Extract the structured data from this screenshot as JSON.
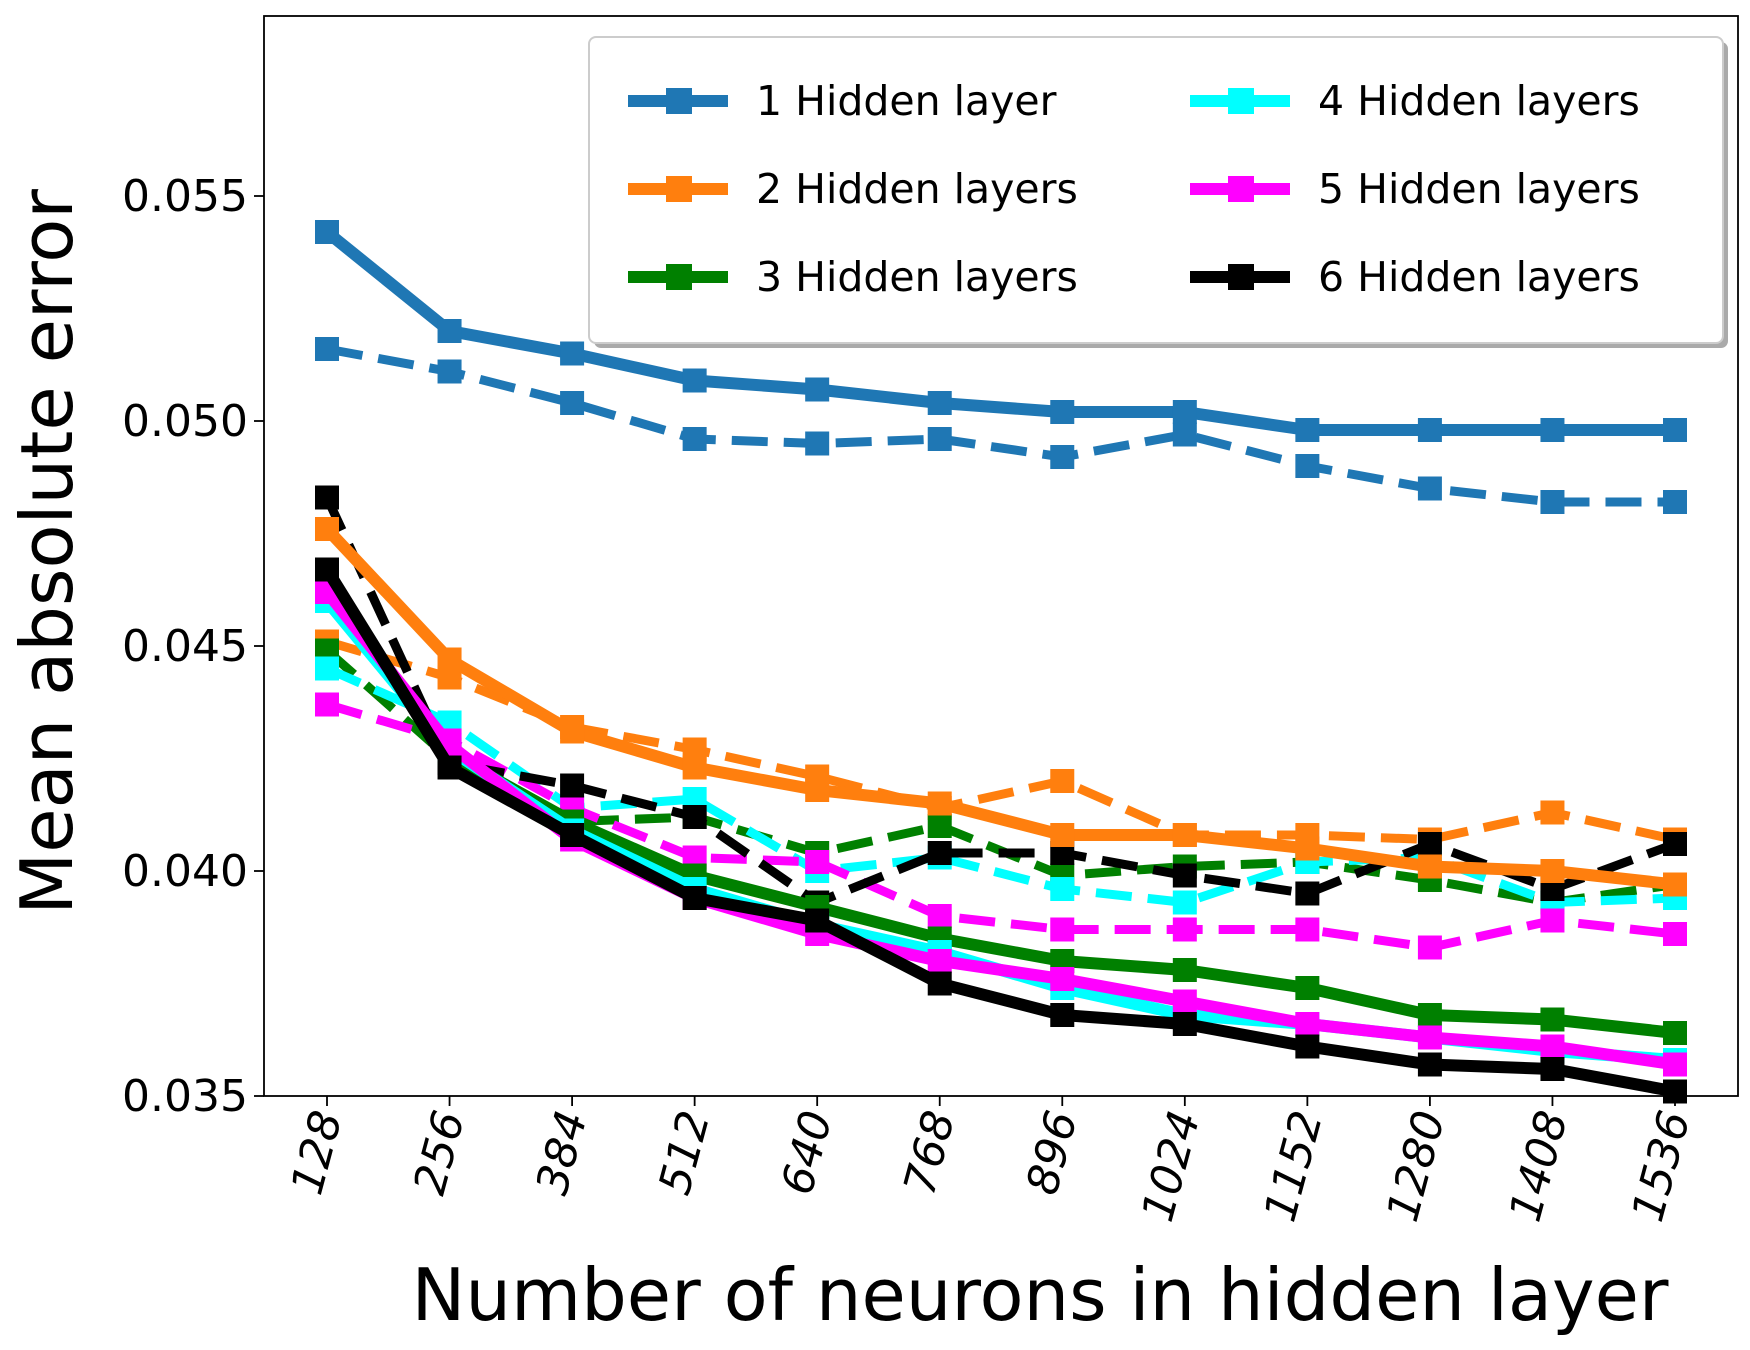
{
  "chart_data": {
    "type": "line",
    "xlabel": "Number of neurons in hidden layer",
    "ylabel": "Mean absolute error",
    "x": [
      128,
      256,
      384,
      512,
      640,
      768,
      896,
      1024,
      1152,
      1280,
      1408,
      1536
    ],
    "xtick_labels": [
      "128",
      "256",
      "384",
      "512",
      "640",
      "768",
      "896",
      "1024",
      "1152",
      "1280",
      "1408",
      "1536"
    ],
    "ylim": [
      0.035,
      0.059
    ],
    "yticks": [
      0.035,
      0.04,
      0.045,
      0.05,
      0.055
    ],
    "ytick_labels": [
      "0.035",
      "0.040",
      "0.045",
      "0.050",
      "0.055"
    ],
    "grid": false,
    "legend_position": "top-right",
    "series": [
      {
        "name": "1 Hidden layer",
        "color": "#1f77b4",
        "style": "solid",
        "values": [
          0.0542,
          0.052,
          0.0515,
          0.0509,
          0.0507,
          0.0504,
          0.0502,
          0.0502,
          0.0498,
          0.0498,
          0.0498,
          0.0498
        ]
      },
      {
        "name": "2 Hidden layers",
        "color": "#ff7f0e",
        "style": "solid",
        "values": [
          0.0476,
          0.0447,
          0.0431,
          0.0423,
          0.0418,
          0.0415,
          0.0408,
          0.0408,
          0.0405,
          0.0401,
          0.04,
          0.0397
        ]
      },
      {
        "name": "3 Hidden layers",
        "color": "#008000",
        "style": "solid",
        "values": [
          0.0464,
          0.0426,
          0.0411,
          0.0399,
          0.0392,
          0.0385,
          0.038,
          0.0378,
          0.0374,
          0.0368,
          0.0367,
          0.0364
        ]
      },
      {
        "name": "4 Hidden layers",
        "color": "#00ffff",
        "style": "solid",
        "values": [
          0.046,
          0.0427,
          0.0409,
          0.0396,
          0.0388,
          0.0382,
          0.0374,
          0.0368,
          0.0366,
          0.0363,
          0.036,
          0.0358
        ]
      },
      {
        "name": "5 Hidden layers",
        "color": "#ff00ff",
        "style": "solid",
        "values": [
          0.0462,
          0.0428,
          0.0407,
          0.0394,
          0.0386,
          0.038,
          0.0376,
          0.0371,
          0.0366,
          0.0363,
          0.0361,
          0.0357
        ]
      },
      {
        "name": "6 Hidden layers",
        "color": "#000000",
        "style": "solid",
        "values": [
          0.0467,
          0.0423,
          0.0408,
          0.0394,
          0.0389,
          0.0375,
          0.0368,
          0.0366,
          0.0361,
          0.0357,
          0.0356,
          0.0351
        ]
      },
      {
        "name": "1 Hidden layer (dashed)",
        "color": "#1f77b4",
        "style": "dashed",
        "values": [
          0.0516,
          0.0511,
          0.0504,
          0.0496,
          0.0495,
          0.0496,
          0.0492,
          0.0497,
          0.049,
          0.0485,
          0.0482,
          0.0482
        ]
      },
      {
        "name": "2 Hidden layers (dashed)",
        "color": "#ff7f0e",
        "style": "dashed",
        "values": [
          0.0451,
          0.0443,
          0.0432,
          0.0427,
          0.0421,
          0.0414,
          0.042,
          0.0408,
          0.0408,
          0.0407,
          0.0413,
          0.0407
        ]
      },
      {
        "name": "3 Hidden layers (dashed)",
        "color": "#008000",
        "style": "dashed",
        "values": [
          0.0449,
          0.0425,
          0.0411,
          0.0412,
          0.0404,
          0.041,
          0.0399,
          0.0401,
          0.0402,
          0.0398,
          0.0393,
          0.0397
        ]
      },
      {
        "name": "4 Hidden layers (dashed)",
        "color": "#00ffff",
        "style": "dashed",
        "values": [
          0.0445,
          0.0433,
          0.0414,
          0.0416,
          0.04,
          0.0403,
          0.0396,
          0.0393,
          0.0402,
          0.0403,
          0.0393,
          0.0394
        ]
      },
      {
        "name": "5 Hidden layers (dashed)",
        "color": "#ff00ff",
        "style": "dashed",
        "values": [
          0.0437,
          0.0429,
          0.0414,
          0.0403,
          0.0402,
          0.039,
          0.0387,
          0.0387,
          0.0387,
          0.0383,
          0.0389,
          0.0386
        ]
      },
      {
        "name": "6 Hidden layers (dashed)",
        "color": "#000000",
        "style": "dashed",
        "values": [
          0.0483,
          0.0424,
          0.0419,
          0.0412,
          0.0393,
          0.0404,
          0.0404,
          0.0399,
          0.0395,
          0.0406,
          0.0396,
          0.0406
        ]
      }
    ],
    "legend": [
      {
        "label": "1 Hidden layer",
        "color": "#1f77b4"
      },
      {
        "label": "2 Hidden layers",
        "color": "#ff7f0e"
      },
      {
        "label": "3 Hidden layers",
        "color": "#008000"
      },
      {
        "label": "4 Hidden layers",
        "color": "#00ffff"
      },
      {
        "label": "5 Hidden layers",
        "color": "#ff00ff"
      },
      {
        "label": "6 Hidden layers",
        "color": "#000000"
      }
    ]
  }
}
